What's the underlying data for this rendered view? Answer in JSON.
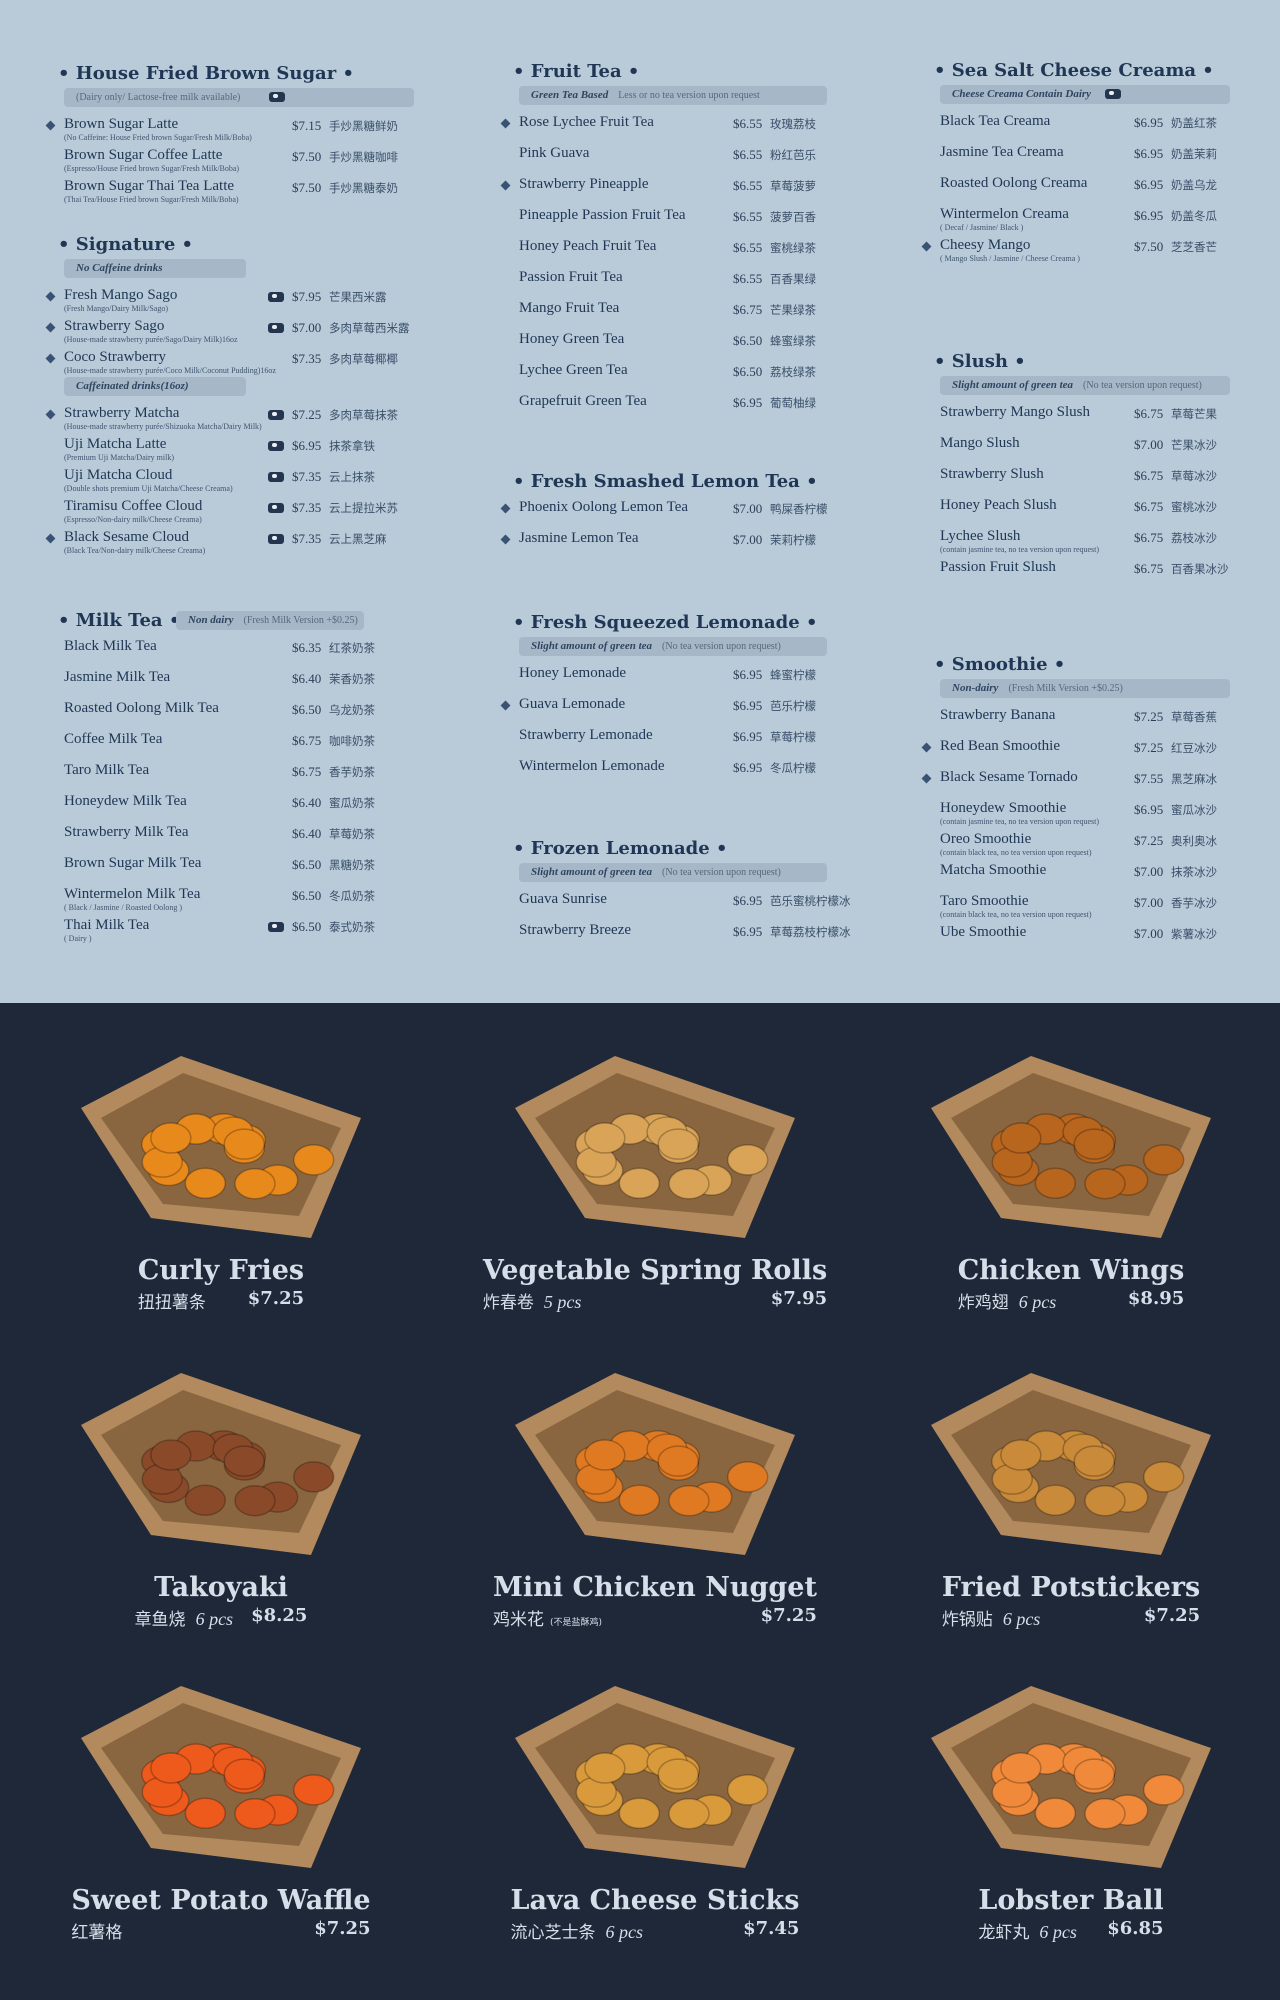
{
  "menu": {
    "columns": [
      {
        "sections": [
          {
            "title": "• House Fried Brown Sugar •",
            "groups": [
              {
                "note": {
                  "text": "(Dairy only/ Lactose-free milk available)",
                  "cow": true
                },
                "items": [
                  {
                    "name": "Brown Sugar Latte",
                    "sub": "(No Caffeine: House Fried brown Sugar/Fresh Milk/Boba)",
                    "price": "$7.15",
                    "cn": "手炒黑糖鲜奶",
                    "star": true
                  },
                  {
                    "name": "Brown Sugar Coffee Latte",
                    "sub": "(Espresso/House Fried brown Sugar/Fresh Milk/Boba)",
                    "price": "$7.50",
                    "cn": "手炒黑糖咖啡"
                  },
                  {
                    "name": "Brown Sugar Thai Tea Latte",
                    "sub": "(Thai Tea/House Fried brown Sugar/Fresh Milk/Boba)",
                    "price": "$7.50",
                    "cn": "手炒黑糖泰奶"
                  }
                ]
              }
            ]
          },
          {
            "title": "• Signature •",
            "groups": [
              {
                "note": {
                  "label": "No Caffeine drinks"
                },
                "items": [
                  {
                    "name": "Fresh Mango Sago",
                    "sub": "(Fresh Mango/Dairy Milk/Sago)",
                    "price": "$7.95",
                    "cn": "芒果西米露",
                    "star": true,
                    "cow": true
                  },
                  {
                    "name": "Strawberry Sago",
                    "sub": "(House-made strawberry purée/Sago/Dairy Milk)16oz",
                    "price": "$7.00",
                    "cn": "多肉草莓西米露",
                    "star": true,
                    "cow": true
                  },
                  {
                    "name": "Coco Strawberry",
                    "sub": "(House-made strawberry purée/Coco Milk/Coconut Pudding)16oz",
                    "price": "$7.35",
                    "cn": "多肉草莓椰椰",
                    "star": true
                  }
                ]
              },
              {
                "note": {
                  "label": "Caffeinated drinks(16oz)"
                },
                "items": [
                  {
                    "name": "Strawberry Matcha",
                    "sub": "(House-made strawberry purée/Shizuoka Matcha/Dairy Milk)",
                    "price": "$7.25",
                    "cn": "多肉草莓抹茶",
                    "star": true,
                    "cow": true
                  },
                  {
                    "name": "Uji Matcha Latte",
                    "sub": "(Premium Uji Matcha/Dairy milk)",
                    "price": "$6.95",
                    "cn": "抹茶拿铁",
                    "cow": true
                  },
                  {
                    "name": "Uji Matcha Cloud",
                    "sub": "(Double shots premium Uji Matcha/Cheese Creama)",
                    "price": "$7.35",
                    "cn": "云上抹茶",
                    "cow": true
                  },
                  {
                    "name": "Tiramisu Coffee Cloud",
                    "sub": "(Espresso/Non-dairy milk/Cheese Creama)",
                    "price": "$7.35",
                    "cn": "云上提拉米苏",
                    "cow": true
                  },
                  {
                    "name": "Black Sesame Cloud",
                    "sub": "(Black Tea/Non-dairy milk/Cheese Creama)",
                    "price": "$7.35",
                    "cn": "云上黑芝麻",
                    "star": true,
                    "cow": true
                  }
                ]
              }
            ]
          },
          {
            "title": "• Milk Tea •",
            "groups": [
              {
                "note": {
                  "label": "Non dairy",
                  "text": "(Fresh Milk Version +$0.25)",
                  "inline": true
                },
                "items": [
                  {
                    "name": "Black Milk Tea",
                    "price": "$6.35",
                    "cn": "红茶奶茶"
                  },
                  {
                    "name": "Jasmine Milk Tea",
                    "price": "$6.40",
                    "cn": "茉香奶茶"
                  },
                  {
                    "name": "Roasted Oolong Milk Tea",
                    "price": "$6.50",
                    "cn": "乌龙奶茶"
                  },
                  {
                    "name": "Coffee Milk Tea",
                    "price": "$6.75",
                    "cn": "咖啡奶茶"
                  },
                  {
                    "name": "Taro Milk Tea",
                    "price": "$6.75",
                    "cn": "香芋奶茶"
                  },
                  {
                    "name": "Honeydew Milk Tea",
                    "price": "$6.40",
                    "cn": "蜜瓜奶茶"
                  },
                  {
                    "name": "Strawberry Milk Tea",
                    "price": "$6.40",
                    "cn": "草莓奶茶"
                  },
                  {
                    "name": "Brown Sugar Milk Tea",
                    "price": "$6.50",
                    "cn": "黑糖奶茶"
                  },
                  {
                    "name": "Wintermelon Milk Tea",
                    "sub": "( Black / Jasmine / Roasted Oolong )",
                    "price": "$6.50",
                    "cn": "冬瓜奶茶"
                  },
                  {
                    "name": "Thai Milk Tea",
                    "sub": "( Dairy )",
                    "price": "$6.50",
                    "cn": "泰式奶茶",
                    "cow": true
                  }
                ]
              }
            ]
          }
        ]
      },
      {
        "sections": [
          {
            "title": "• Fruit Tea •",
            "groups": [
              {
                "note": {
                  "label": "Green Tea Based",
                  "text": "Less or no tea version upon request"
                },
                "items": [
                  {
                    "name": "Rose Lychee Fruit Tea",
                    "price": "$6.55",
                    "cn": "玫瑰荔枝",
                    "star": true
                  },
                  {
                    "name": "Pink Guava",
                    "price": "$6.55",
                    "cn": "粉红芭乐"
                  },
                  {
                    "name": "Strawberry Pineapple",
                    "price": "$6.55",
                    "cn": "草莓菠萝",
                    "star": true
                  },
                  {
                    "name": "Pineapple Passion Fruit Tea",
                    "price": "$6.55",
                    "cn": "菠萝百香"
                  },
                  {
                    "name": "Honey Peach Fruit Tea",
                    "price": "$6.55",
                    "cn": "蜜桃绿茶"
                  },
                  {
                    "name": "Passion Fruit Tea",
                    "price": "$6.55",
                    "cn": "百香果绿"
                  },
                  {
                    "name": "Mango Fruit Tea",
                    "price": "$6.75",
                    "cn": "芒果绿茶"
                  },
                  {
                    "name": "Honey Green Tea",
                    "price": "$6.50",
                    "cn": "蜂蜜绿茶"
                  },
                  {
                    "name": "Lychee Green Tea",
                    "price": "$6.50",
                    "cn": "荔枝绿茶"
                  },
                  {
                    "name": "Grapefruit Green Tea",
                    "price": "$6.95",
                    "cn": "葡萄柚绿"
                  }
                ]
              }
            ]
          },
          {
            "title": "• Fresh Smashed Lemon Tea •",
            "groups": [
              {
                "items": [
                  {
                    "name": "Phoenix Oolong Lemon Tea",
                    "price": "$7.00",
                    "cn": "鸭屎香柠檬",
                    "star": true
                  },
                  {
                    "name": "Jasmine Lemon Tea",
                    "price": "$7.00",
                    "cn": "茉莉柠檬",
                    "star": true
                  }
                ]
              }
            ]
          },
          {
            "title": "• Fresh Squeezed Lemonade •",
            "groups": [
              {
                "note": {
                  "label": "Slight amount of green tea",
                  "text": "(No tea version upon request)"
                },
                "items": [
                  {
                    "name": "Honey Lemonade",
                    "price": "$6.95",
                    "cn": "蜂蜜柠檬"
                  },
                  {
                    "name": "Guava Lemonade",
                    "price": "$6.95",
                    "cn": "芭乐柠檬",
                    "star": true
                  },
                  {
                    "name": "Strawberry Lemonade",
                    "price": "$6.95",
                    "cn": "草莓柠檬"
                  },
                  {
                    "name": "Wintermelon Lemonade",
                    "price": "$6.95",
                    "cn": "冬瓜柠檬"
                  }
                ]
              }
            ]
          },
          {
            "title": "• Frozen Lemonade •",
            "groups": [
              {
                "note": {
                  "label": "Slight amount of green tea",
                  "text": "(No tea version upon request)"
                },
                "items": [
                  {
                    "name": "Guava Sunrise",
                    "price": "$6.95",
                    "cn": "芭乐蜜桃柠檬冰"
                  },
                  {
                    "name": "Strawberry Breeze",
                    "price": "$6.95",
                    "cn": "草莓荔枝柠檬冰"
                  }
                ]
              }
            ]
          }
        ]
      },
      {
        "sections": [
          {
            "title": "• Sea Salt Cheese Creama •",
            "groups": [
              {
                "note": {
                  "label": "Cheese Creama Contain Dairy",
                  "cow": true
                },
                "items": [
                  {
                    "name": "Black Tea Creama",
                    "price": "$6.95",
                    "cn": "奶盖红茶"
                  },
                  {
                    "name": "Jasmine Tea Creama",
                    "price": "$6.95",
                    "cn": "奶盖茉莉"
                  },
                  {
                    "name": "Roasted Oolong Creama",
                    "price": "$6.95",
                    "cn": "奶盖乌龙"
                  },
                  {
                    "name": "Wintermelon Creama",
                    "sub": "( Decaf / Jasmine/ Black )",
                    "price": "$6.95",
                    "cn": "奶盖冬瓜"
                  },
                  {
                    "name": "Cheesy Mango",
                    "sub": "( Mango Slush / Jasmine / Cheese Creama )",
                    "price": "$7.50",
                    "cn": "芝芝香芒",
                    "star": true
                  }
                ]
              }
            ]
          },
          {
            "title": "• Slush •",
            "groups": [
              {
                "note": {
                  "label": "Slight amount of green tea",
                  "text": "(No tea version upon request)"
                },
                "items": [
                  {
                    "name": "Strawberry Mango Slush",
                    "price": "$6.75",
                    "cn": "草莓芒果"
                  },
                  {
                    "name": "Mango Slush",
                    "price": "$7.00",
                    "cn": "芒果冰沙"
                  },
                  {
                    "name": "Strawberry Slush",
                    "price": "$6.75",
                    "cn": "草莓冰沙"
                  },
                  {
                    "name": "Honey Peach Slush",
                    "price": "$6.75",
                    "cn": "蜜桃冰沙"
                  },
                  {
                    "name": "Lychee Slush",
                    "sub": "(contain jasmine tea, no tea version upon request)",
                    "price": "$6.75",
                    "cn": "荔枝冰沙"
                  },
                  {
                    "name": "Passion Fruit Slush",
                    "price": "$6.75",
                    "cn": "百香果冰沙"
                  }
                ]
              }
            ]
          },
          {
            "title": "• Smoothie •",
            "groups": [
              {
                "note": {
                  "label": "Non-dairy",
                  "text": "(Fresh Milk Version +$0.25)"
                },
                "items": [
                  {
                    "name": "Strawberry Banana",
                    "price": "$7.25",
                    "cn": "草莓香蕉"
                  },
                  {
                    "name": "Red Bean Smoothie",
                    "price": "$7.25",
                    "cn": "红豆冰沙",
                    "star": true
                  },
                  {
                    "name": "Black Sesame Tornado",
                    "price": "$7.55",
                    "cn": "黑芝麻冰",
                    "star": true
                  },
                  {
                    "name": "Honeydew Smoothie",
                    "sub": "(contain jasmine tea, no tea version upon request)",
                    "price": "$6.95",
                    "cn": "蜜瓜冰沙"
                  },
                  {
                    "name": "Oreo Smoothie",
                    "sub": "(contain black tea, no tea version upon request)",
                    "price": "$7.25",
                    "cn": "奥利奥冰"
                  },
                  {
                    "name": "Matcha Smoothie",
                    "price": "$7.00",
                    "cn": "抹茶冰沙"
                  },
                  {
                    "name": "Taro Smoothie",
                    "sub": "(contain black tea, no tea version upon request)",
                    "price": "$7.00",
                    "cn": "香芋冰沙"
                  },
                  {
                    "name": "Ube Smoothie",
                    "price": "$7.00",
                    "cn": "紫薯冰沙"
                  }
                ]
              }
            ]
          }
        ]
      }
    ]
  },
  "food": {
    "items": [
      {
        "name": "Curly Fries",
        "cn": "扭扭薯条",
        "price": "$7.25",
        "color": "#e8891c"
      },
      {
        "name": "Vegetable Spring Rolls",
        "cn": "炸春卷",
        "pcs": "5 pcs",
        "price": "$7.95",
        "color": "#d9a457"
      },
      {
        "name": "Chicken Wings",
        "cn": "炸鸡翅",
        "pcs": "6 pcs",
        "price": "$8.95",
        "color": "#b8651e"
      },
      {
        "name": "Takoyaki",
        "cn": "章鱼烧",
        "pcs": "6 pcs",
        "price": "$8.25",
        "color": "#8a4a2a"
      },
      {
        "name": "Mini Chicken Nugget",
        "cn": "鸡米花",
        "note": "(不是盐酥鸡)",
        "price": "$7.25",
        "color": "#e07a22"
      },
      {
        "name": "Fried Potstickers",
        "cn": "炸锅贴",
        "pcs": "6 pcs",
        "price": "$7.25",
        "color": "#c98a3a"
      },
      {
        "name": "Sweet Potato Waffle",
        "cn": "红薯格",
        "price": "$7.25",
        "color": "#ee5a1c"
      },
      {
        "name": "Lava Cheese Sticks",
        "cn": "流心芝士条",
        "pcs": "6 pcs",
        "price": "$7.45",
        "color": "#d99a3c"
      },
      {
        "name": "Lobster Ball",
        "cn": "龙虾丸",
        "pcs": "6 pcs",
        "price": "$6.85",
        "color": "#f08a3a"
      }
    ]
  }
}
